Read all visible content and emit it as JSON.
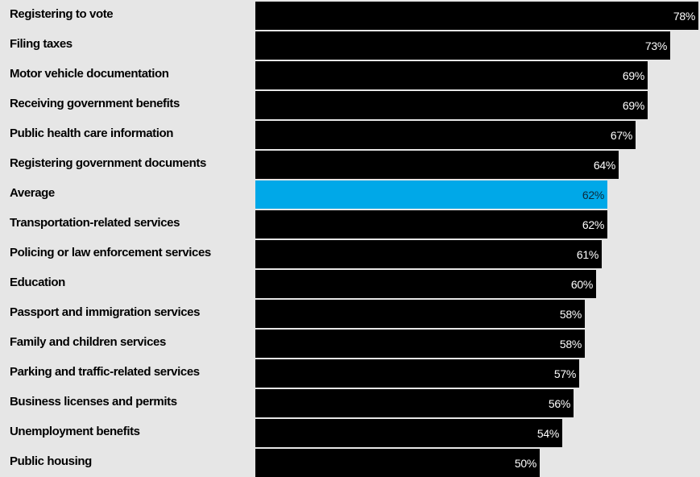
{
  "chart_data": {
    "type": "bar",
    "orientation": "horizontal",
    "categories": [
      "Registering to vote",
      "Filing taxes",
      "Motor vehicle documentation",
      "Receiving government benefits",
      "Public health care information",
      "Registering government documents",
      "Average",
      "Transportation-related services",
      "Policing or law enforcement services",
      "Education",
      "Passport and immigration services",
      "Family and children services",
      "Parking and traffic-related services",
      "Business licenses and permits",
      "Unemployment benefits",
      "Public housing"
    ],
    "values": [
      78,
      73,
      69,
      69,
      67,
      64,
      62,
      62,
      61,
      60,
      58,
      58,
      57,
      56,
      54,
      50
    ],
    "value_labels": [
      "78%",
      "73%",
      "69%",
      "69%",
      "67%",
      "64%",
      "62%",
      "62%",
      "61%",
      "60%",
      "58%",
      "58%",
      "57%",
      "56%",
      "54%",
      "50%"
    ],
    "highlight_category": "Average",
    "xlim": [
      0,
      78
    ],
    "grid": false,
    "legend": "none",
    "colors": {
      "bar": "#000000",
      "highlight": "#00a8e8",
      "background": "#e6e6e6",
      "label_text": "#000000",
      "value_text_on_bar": "#ffffff",
      "value_text_on_highlight": "#0d2a3a"
    }
  }
}
